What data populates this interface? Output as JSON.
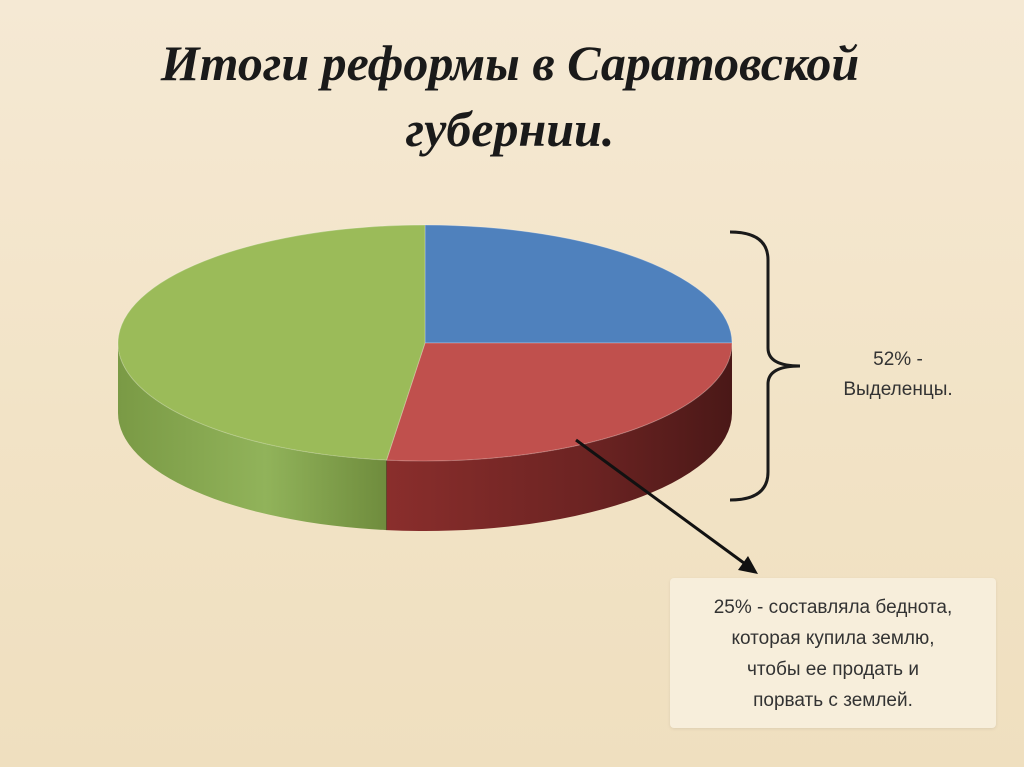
{
  "slide": {
    "title_line1": "Итоги реформы в Саратовской",
    "title_line2": "губернии."
  },
  "bracket_label": {
    "line1": "52% -",
    "line2": "Выделенцы."
  },
  "note": {
    "lines": [
      "25% - составляла беднота,",
      "которая купила землю,",
      "чтобы ее продать и",
      "порвать с землей."
    ]
  },
  "chart_data": {
    "type": "pie",
    "style": "3d",
    "title": "",
    "slices": [
      {
        "value": 25,
        "color": "#4f81bd"
      },
      {
        "value": 27,
        "color": "#c0504d"
      },
      {
        "value": 48,
        "color": "#9bbb59"
      }
    ],
    "start_angle_deg": 90,
    "direction": "clockwise",
    "legend": "none"
  },
  "colors": {
    "arrow": "#111111",
    "bracket": "#1a1a1a"
  }
}
